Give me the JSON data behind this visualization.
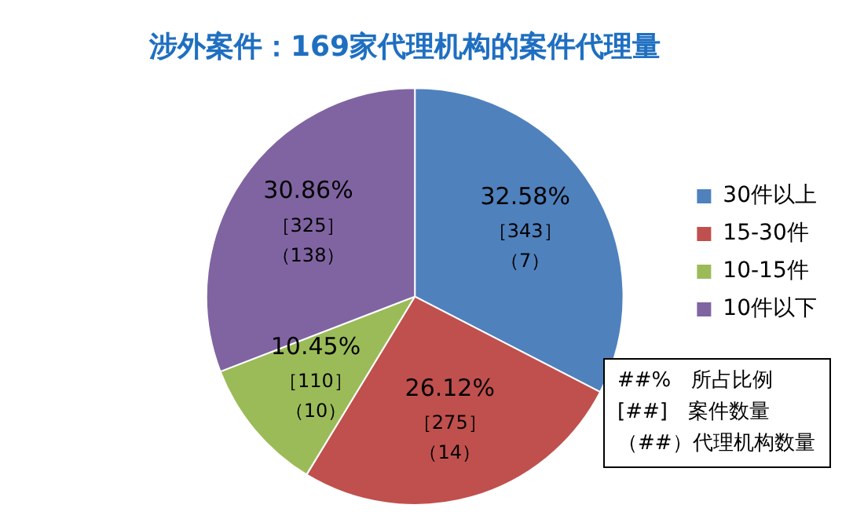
{
  "chart_data": {
    "type": "pie",
    "title": "涉外案件：169家代理机构的案件代理量",
    "categories": [
      "30件以上",
      "15-30件",
      "10-15件",
      "10件以下"
    ],
    "values": [
      32.58,
      26.12,
      10.45,
      30.86
    ],
    "colors": [
      "#4f81bd",
      "#c0504d",
      "#9bbb59",
      "#8064a2"
    ],
    "value_labels": [
      "32.58%［343］（7）",
      "26.12%［275］（14）",
      "10.45%［110］（10）",
      "30.86%［325］（138）"
    ],
    "legend": "right",
    "annotations": [
      "##%　所占比例",
      "[##]　案件数量",
      "（##）代理机构数量"
    ]
  }
}
